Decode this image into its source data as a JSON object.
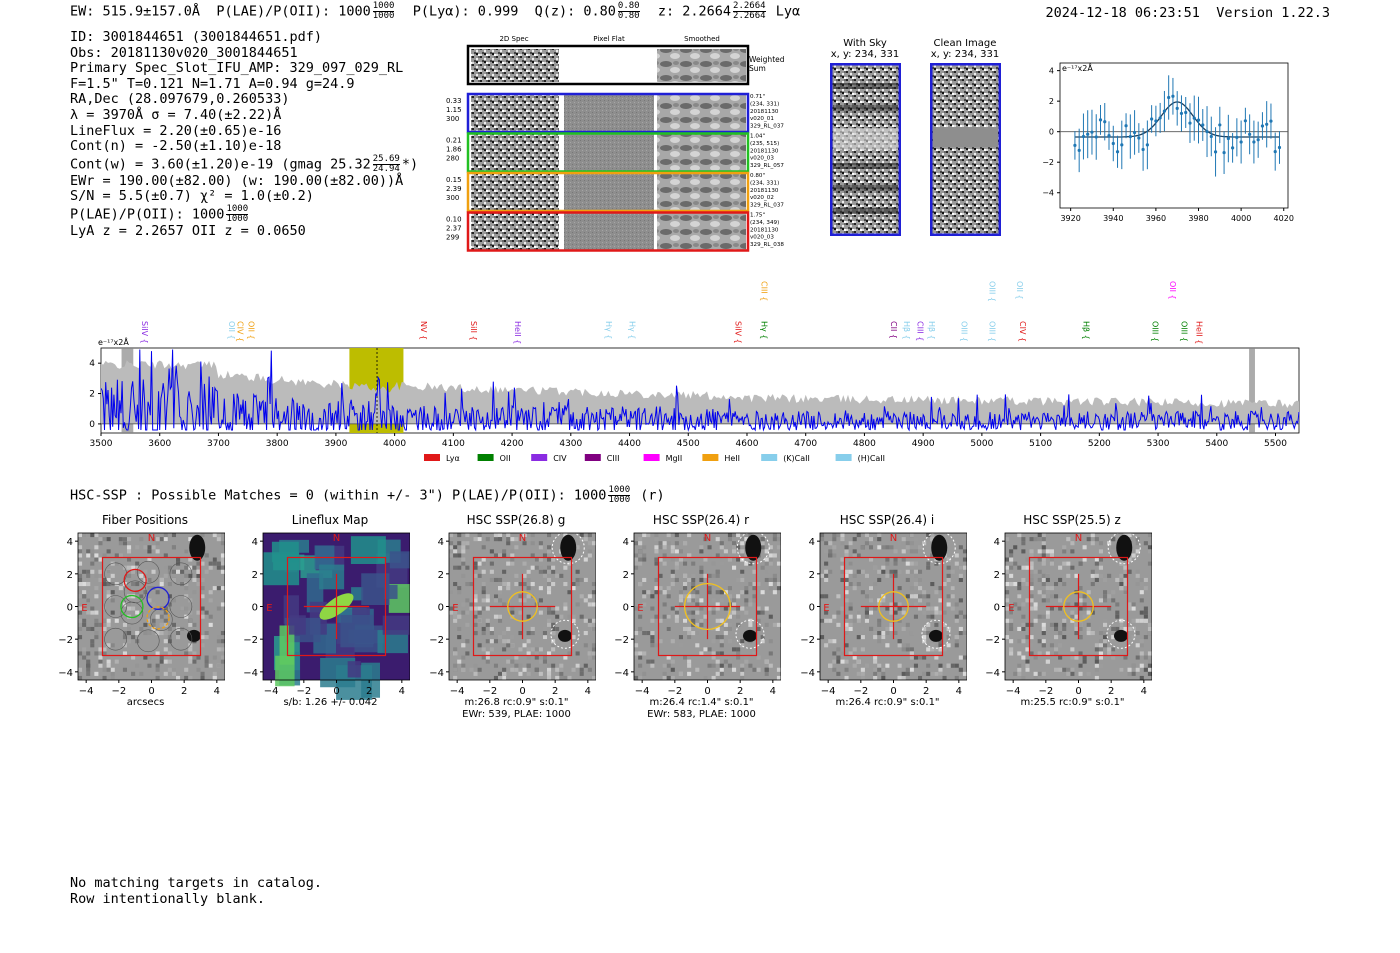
{
  "header": {
    "ew": "EW: 515.9±157.0Å",
    "plae_label": "P(LAE)/P(OII): 1000",
    "plae_hi": "1000",
    "plae_lo": "1000",
    "plya": "P(Lyα): 0.999",
    "qz_label": "Q(z): 0.80",
    "qz_hi": "0.80",
    "qz_lo": "0.80",
    "z_label": "z: 2.2664",
    "z_hi": "2.2664",
    "z_lo": "2.2664",
    "line": "Lyα",
    "timestamp": "2024-12-18 06:23:51",
    "version": "Version 1.22.3"
  },
  "info": {
    "id": "ID: 3001844651 (3001844651.pdf)",
    "obs": "Obs: 20181130v020_3001844651",
    "primary": "Primary Spec_Slot_IFU_AMP: 329_097_029_RL",
    "fiber": "F=1.5\"  T=0.121  N=1.71  A=0.94  g=24.9",
    "radec": "RA,Dec (28.097679,0.260533)",
    "lambda": "λ = 3970Å  σ = 7.40(±2.22)Å",
    "lineflux": "LineFlux = 2.20(±0.65)e-16",
    "contn": "Cont(n) = -2.50(±1.10)e-18",
    "contw_label": "Cont(w) = 3.60(±1.20)e-19 (gmag 25.32",
    "contw_hi": "25.69",
    "contw_lo": "24.94",
    "contw_tail": "*)",
    "ewr": "EWr = 190.00(±82.00) (w: 190.00(±82.00))Å",
    "sn": "S/N = 5.5(±0.7)  χ² = 1.0(±0.2)",
    "plae_label": "P(LAE)/P(OII): 1000",
    "plae_hi": "1000",
    "plae_lo": "1000",
    "redshift": "LyA z = 2.2657  OII z = 0.0650"
  },
  "cutouts2d": {
    "headers": [
      "2D Spec",
      "Pixel Flat",
      "Smoothed"
    ],
    "weighted": "Weighted Sum",
    "rows": [
      {
        "color": "#1f1fd6",
        "left": [
          "0.33",
          "1.15",
          "300"
        ],
        "right": [
          "0.71\"",
          "(234, 331)",
          "20181130",
          "v020_01",
          "329_RL_037"
        ]
      },
      {
        "color": "#22c022",
        "left": [
          "0.21",
          "1.86",
          "280"
        ],
        "right": [
          "1.04\"",
          "(235, 515)",
          "20181130",
          "v020_03",
          "329_RL_057"
        ]
      },
      {
        "color": "#f0a010",
        "left": [
          "0.15",
          "2.39",
          "300"
        ],
        "right": [
          "0.80\"",
          "(234, 331)",
          "20181130",
          "v020_02",
          "329_RL_037"
        ]
      },
      {
        "color": "#e01818",
        "left": [
          "0.10",
          "2.37",
          "299"
        ],
        "right": [
          "1.75\"",
          "(234, 349)",
          "20181130",
          "v020_03",
          "329_RL_038"
        ]
      }
    ]
  },
  "sky_panels": {
    "with_sky": [
      "With Sky",
      "x, y: 234, 331"
    ],
    "clean": [
      "Clean Image",
      "x, y: 234, 331"
    ]
  },
  "zoom_plot": {
    "unit": "e⁻¹⁷x2Å",
    "x_ticks": [
      "3920",
      "3940",
      "3960",
      "3980",
      "4000",
      "4020"
    ],
    "y_ticks": [
      "4",
      "2",
      "0",
      "−2",
      "−4"
    ]
  },
  "full_spectrum": {
    "unit": "e⁻¹⁷x2Å",
    "x_ticks": [
      "3500",
      "3600",
      "3700",
      "3800",
      "3900",
      "4000",
      "4100",
      "4200",
      "4300",
      "4400",
      "4500",
      "4600",
      "4700",
      "4800",
      "4900",
      "5000",
      "5100",
      "5200",
      "5300",
      "5400",
      "5500"
    ],
    "y_ticks": [
      "4",
      "2",
      "0"
    ],
    "line_labels": [
      {
        "t": "SiIV",
        "c": "#8a2be2",
        "x": 3565,
        "row": 1
      },
      {
        "t": "OII",
        "c": "#87ceeb",
        "x": 3713,
        "row": 1
      },
      {
        "t": "CIV",
        "c": "#f0a010",
        "x": 3727,
        "row": 1
      },
      {
        "t": "OII",
        "c": "#f0a010",
        "x": 3746,
        "row": 1
      },
      {
        "t": "NV",
        "c": "#e01818",
        "x": 4040,
        "row": 1
      },
      {
        "t": "SiII",
        "c": "#e01818",
        "x": 4125,
        "row": 1
      },
      {
        "t": "HeII",
        "c": "#8a2be2",
        "x": 4200,
        "row": 1
      },
      {
        "t": "Hγ",
        "c": "#87ceeb",
        "x": 4355,
        "row": 1
      },
      {
        "t": "Hγ",
        "c": "#87ceeb",
        "x": 4395,
        "row": 1
      },
      {
        "t": "SiIV",
        "c": "#e01818",
        "x": 4575,
        "row": 1
      },
      {
        "t": "CIII",
        "c": "#f0a010",
        "x": 4620,
        "row": 0
      },
      {
        "t": "Hγ",
        "c": "#008000",
        "x": 4620,
        "row": 1
      },
      {
        "t": "CII",
        "c": "#800080",
        "x": 4840,
        "row": 1
      },
      {
        "t": "Hβ",
        "c": "#87ceeb",
        "x": 4862,
        "row": 1
      },
      {
        "t": "CIII",
        "c": "#8a2be2",
        "x": 4885,
        "row": 1
      },
      {
        "t": "Hβ",
        "c": "#87ceeb",
        "x": 4905,
        "row": 1
      },
      {
        "t": "OIII",
        "c": "#87ceeb",
        "x": 4960,
        "row": 1
      },
      {
        "t": "OIII",
        "c": "#87ceeb",
        "x": 5008,
        "row": 0
      },
      {
        "t": "OIII",
        "c": "#87ceeb",
        "x": 5008,
        "row": 1
      },
      {
        "t": "OII",
        "c": "#87ceeb",
        "x": 5055,
        "row": 0
      },
      {
        "t": "CIV",
        "c": "#e01818",
        "x": 5060,
        "row": 1
      },
      {
        "t": "Hβ",
        "c": "#008000",
        "x": 5168,
        "row": 1
      },
      {
        "t": "OII",
        "c": "#ff00ff",
        "x": 5315,
        "row": 0
      },
      {
        "t": "OIII",
        "c": "#008000",
        "x": 5285,
        "row": 1
      },
      {
        "t": "OIII",
        "c": "#008000",
        "x": 5335,
        "row": 1
      },
      {
        "t": "HeII",
        "c": "#e01818",
        "x": 5360,
        "row": 1
      }
    ],
    "legend": [
      {
        "label": "Lyα",
        "color": "#e01818"
      },
      {
        "label": "OII",
        "color": "#008000"
      },
      {
        "label": "CIV",
        "color": "#8a2be2"
      },
      {
        "label": "CIII",
        "color": "#800080"
      },
      {
        "label": "MgII",
        "color": "#ff00ff"
      },
      {
        "label": "HeII",
        "color": "#f0a010"
      },
      {
        "label": "(K)CaII",
        "color": "#87ceeb"
      },
      {
        "label": "(H)CaII",
        "color": "#87ceeb"
      }
    ]
  },
  "hsc": {
    "title_label": "HSC-SSP : Possible Matches = 0 (within +/- 3\")  P(LAE)/P(OII): 1000",
    "title_hi": "1000",
    "title_lo": "1000",
    "title_tail": "(r)",
    "panels": [
      {
        "title": "Fiber Positions",
        "sub": [
          "arcsecs"
        ],
        "kind": "fiber"
      },
      {
        "title": "Lineflux Map",
        "sub": [
          "s/b: 1.26 +/- 0.042"
        ],
        "kind": "flux"
      },
      {
        "title": "HSC SSP(26.8) g",
        "sub": [
          "m:26.8 rc:0.9\"  s:0.1\"",
          "EWr: 539, PLAE: 1000"
        ],
        "kind": "g"
      },
      {
        "title": "HSC SSP(26.4) r",
        "sub": [
          "m:26.4 rc:1.4\"  s:0.1\"",
          "EWr: 583, PLAE: 1000"
        ],
        "kind": "r"
      },
      {
        "title": "HSC SSP(26.4) i",
        "sub": [
          "m:26.4 rc:0.9\"  s:0.1\""
        ],
        "kind": "i"
      },
      {
        "title": "HSC SSP(25.5) z",
        "sub": [
          "m:25.5 rc:0.9\"  s:0.1\""
        ],
        "kind": "z"
      }
    ],
    "axis_ticks": [
      "−4",
      "−2",
      "0",
      "2",
      "4"
    ],
    "y_ticks": [
      "4",
      "2",
      "0",
      "−2",
      "−4"
    ],
    "n_label": "N",
    "e_label": "E"
  },
  "footer": {
    "line1": "No matching targets in catalog.",
    "line2": "Row intentionally blank."
  }
}
